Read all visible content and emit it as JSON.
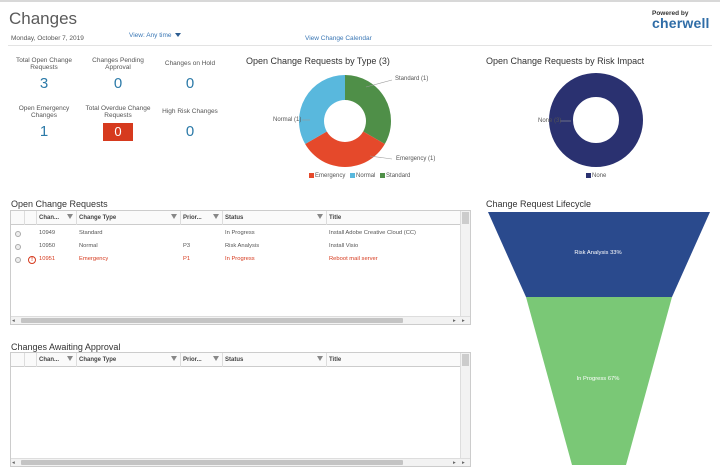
{
  "header": {
    "title": "Changes",
    "date": "Monday, October 7, 2019",
    "view_label": "View: Any time",
    "calendar_link": "View Change Calendar",
    "logo_small": "Powered by",
    "logo_big": "cherwell"
  },
  "kpis": [
    {
      "label": "Total Open Change Requests",
      "value": "3"
    },
    {
      "label": "Changes Pending Approval",
      "value": "0"
    },
    {
      "label": "Changes on Hold",
      "value": "0"
    },
    {
      "label": "Open Emergency Changes",
      "value": "1"
    },
    {
      "label": "Total Overdue Change Requests",
      "value": "0"
    },
    {
      "label": "High Risk Changes",
      "value": "0"
    }
  ],
  "by_type": {
    "title": "Open Change Requests by Type (3)",
    "label_standard": "Standard (1)",
    "label_normal": "Normal (1)",
    "label_emergency": "Emergency (1)",
    "legend_emergency": "Emergency",
    "legend_normal": "Normal",
    "legend_standard": "Standard",
    "colors": {
      "emergency": "#e5492b",
      "normal": "#59b8dd",
      "standard": "#4f8f48"
    }
  },
  "by_risk": {
    "title": "Open Change Requests by Risk Impact",
    "label_none": "None (3)",
    "legend_none": "None",
    "color_none": "#2a3170"
  },
  "open_requests": {
    "title": "Open Change Requests",
    "columns": {
      "id": "Chan...",
      "type": "Change Type",
      "priority": "Prior...",
      "status": "Status",
      "title": "Title"
    },
    "rows": [
      {
        "id": "10949",
        "type": "Standard",
        "priority": "",
        "status": "In Progress",
        "title": "Install Adobe Creative Cloud (CC)"
      },
      {
        "id": "10950",
        "type": "Normal",
        "priority": "P3",
        "status": "Risk Analysis",
        "title": "Install Visio"
      },
      {
        "id": "10951",
        "type": "Emergency",
        "priority": "P1",
        "status": "In Progress",
        "title": "Reboot mail server"
      }
    ]
  },
  "awaiting": {
    "title": "Changes Awaiting Approval",
    "columns": {
      "id": "Chan...",
      "type": "Change Type",
      "priority": "Prior...",
      "status": "Status",
      "title": "Title"
    }
  },
  "lifecycle": {
    "title": "Change Request Lifecycle",
    "stage1": "Risk Analysis 33%",
    "stage2": "In Progress 67%",
    "color1": "#2a4a8d",
    "color2": "#7ac876"
  }
}
